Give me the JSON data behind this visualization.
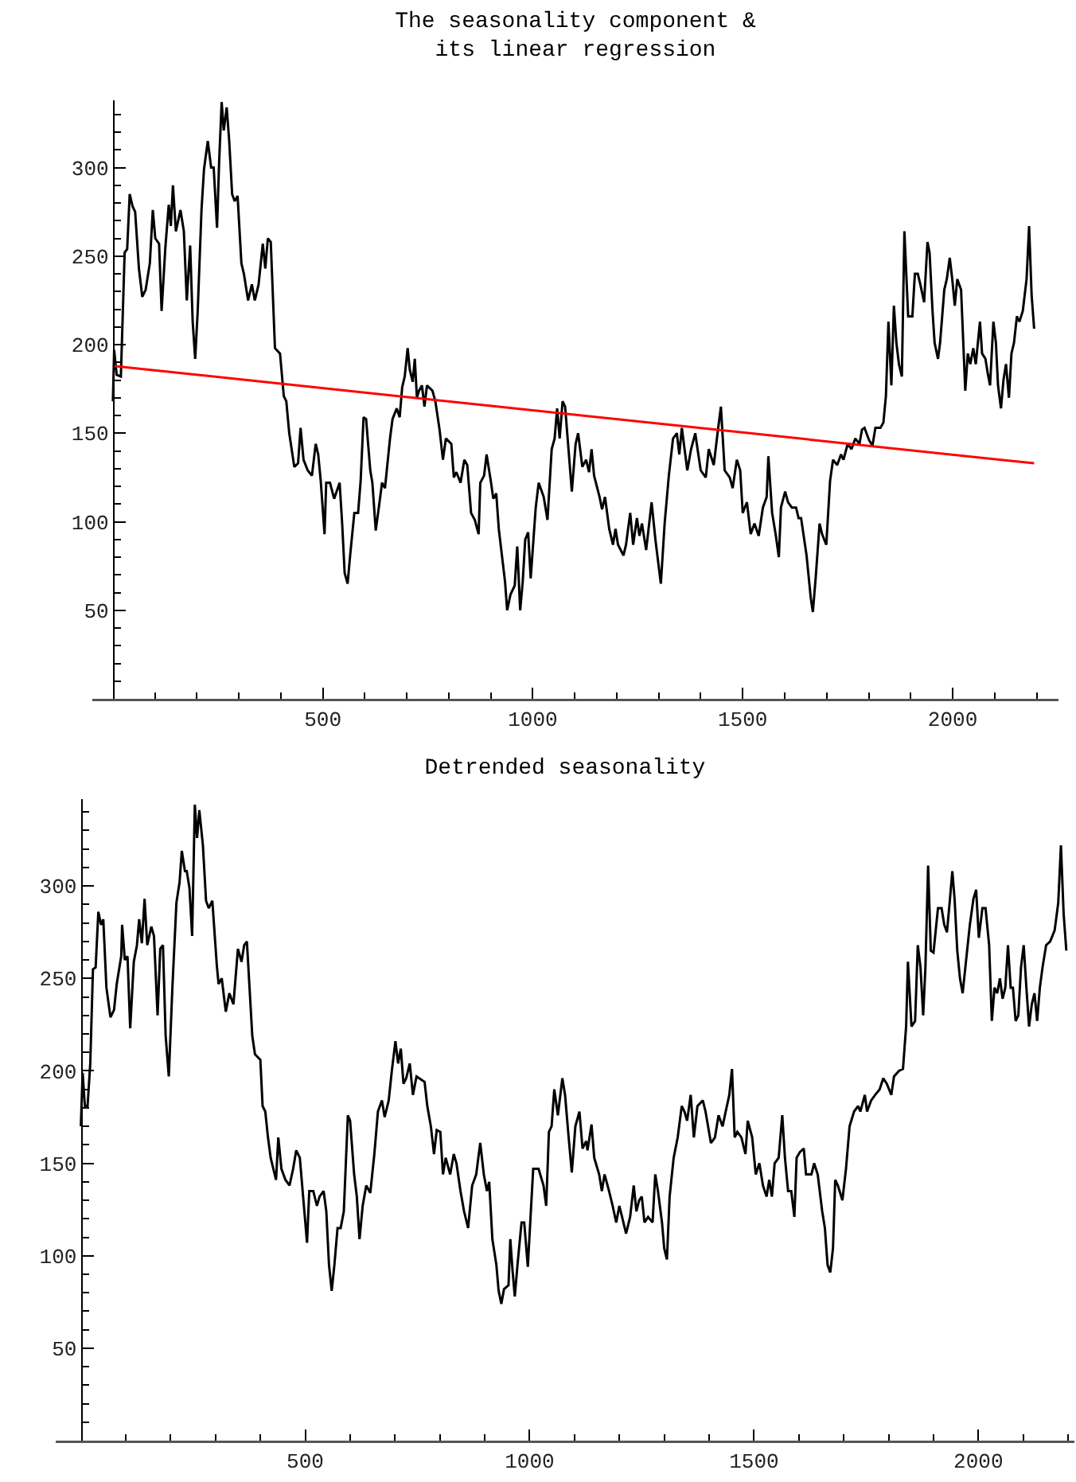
{
  "chart_data": [
    {
      "type": "line",
      "title": "The seasonality component &\nits linear regression",
      "xlim": [
        -49,
        2252
      ],
      "ylim": [
        0,
        338
      ],
      "xticks": [
        {
          "value": 100,
          "label": null
        },
        {
          "value": 200,
          "label": null
        },
        {
          "value": 300,
          "label": null
        },
        {
          "value": 400,
          "label": null
        },
        500,
        {
          "value": 600,
          "label": null
        },
        {
          "value": 700,
          "label": null
        },
        {
          "value": 800,
          "label": null
        },
        {
          "value": 900,
          "label": null
        },
        1000,
        {
          "value": 1100,
          "label": null
        },
        {
          "value": 1200,
          "label": null
        },
        {
          "value": 1300,
          "label": null
        },
        {
          "value": 1400,
          "label": null
        },
        1500,
        {
          "value": 1600,
          "label": null
        },
        {
          "value": 1700,
          "label": null
        },
        {
          "value": 1800,
          "label": null
        },
        {
          "value": 1900,
          "label": null
        },
        2000,
        {
          "value": 2100,
          "label": null
        },
        {
          "value": 2200,
          "label": null
        }
      ],
      "yticks": [
        {
          "value": 10,
          "label": null
        },
        {
          "value": 20,
          "label": null
        },
        {
          "value": 30,
          "label": null
        },
        {
          "value": 40,
          "label": null
        },
        50,
        {
          "value": 60,
          "label": null
        },
        {
          "value": 70,
          "label": null
        },
        {
          "value": 80,
          "label": null
        },
        {
          "value": 90,
          "label": null
        },
        100,
        {
          "value": 110,
          "label": null
        },
        {
          "value": 120,
          "label": null
        },
        {
          "value": 130,
          "label": null
        },
        {
          "value": 140,
          "label": null
        },
        150,
        {
          "value": 160,
          "label": null
        },
        {
          "value": 170,
          "label": null
        },
        {
          "value": 180,
          "label": null
        },
        {
          "value": 190,
          "label": null
        },
        200,
        {
          "value": 210,
          "label": null
        },
        {
          "value": 220,
          "label": null
        },
        {
          "value": 230,
          "label": null
        },
        {
          "value": 240,
          "label": null
        },
        250,
        {
          "value": 260,
          "label": null
        },
        {
          "value": 270,
          "label": null
        },
        {
          "value": 280,
          "label": null
        },
        {
          "value": 290,
          "label": null
        },
        300,
        {
          "value": 310,
          "label": null
        },
        {
          "value": 320,
          "label": null
        },
        {
          "value": 330,
          "label": null
        }
      ],
      "series": [
        {
          "color": "#000000",
          "x": [
            0,
            3,
            9,
            19,
            28,
            34,
            40,
            47,
            53,
            62,
            70,
            78,
            88,
            95,
            101,
            110,
            116,
            125,
            133,
            138,
            143,
            150,
            161,
            169,
            176,
            184,
            190,
            196,
            202,
            211,
            217,
            226,
            234,
            240,
            248,
            253,
            259,
            264,
            271,
            277,
            284,
            290,
            297,
            306,
            312,
            322,
            331,
            338,
            347,
            357,
            363,
            369,
            376,
            386,
            398,
            407,
            413,
            420,
            432,
            441,
            447,
            454,
            464,
            474,
            483,
            489,
            495,
            504,
            508,
            517,
            527,
            540,
            546,
            552,
            559,
            565,
            575,
            584,
            590,
            597,
            603,
            613,
            618,
            626,
            635,
            641,
            648,
            660,
            666,
            676,
            683,
            689,
            695,
            702,
            707,
            714,
            719,
            724,
            729,
            736,
            742,
            748,
            761,
            768,
            778,
            786,
            793,
            806,
            812,
            818,
            828,
            837,
            844,
            853,
            862,
            871,
            875,
            884,
            890,
            900,
            906,
            913,
            919,
            925,
            934,
            939,
            947,
            957,
            963,
            970,
            976,
            982,
            989,
            995,
            1007,
            1014,
            1026,
            1035,
            1045,
            1052,
            1058,
            1064,
            1071,
            1077,
            1083,
            1093,
            1102,
            1108,
            1118,
            1127,
            1134,
            1140,
            1146,
            1159,
            1165,
            1172,
            1182,
            1191,
            1197,
            1203,
            1216,
            1222,
            1232,
            1239,
            1248,
            1254,
            1260,
            1270,
            1283,
            1292,
            1305,
            1314,
            1324,
            1334,
            1343,
            1349,
            1355,
            1362,
            1368,
            1377,
            1387,
            1393,
            1400,
            1412,
            1419,
            1431,
            1440,
            1448,
            1457,
            1469,
            1476,
            1486,
            1494,
            1500,
            1510,
            1519,
            1528,
            1538,
            1548,
            1557,
            1561,
            1570,
            1579,
            1586,
            1591,
            1601,
            1608,
            1617,
            1627,
            1633,
            1639,
            1652,
            1662,
            1667,
            1674,
            1683,
            1689,
            1699,
            1708,
            1715,
            1725,
            1734,
            1740,
            1750,
            1759,
            1768,
            1778,
            1784,
            1790,
            1801,
            1809,
            1816,
            1828,
            1835,
            1841,
            1847,
            1854,
            1860,
            1866,
            1872,
            1879,
            1885,
            1894,
            1904,
            1910,
            1917,
            1923,
            1932,
            1940,
            1945,
            1952,
            1957,
            1965,
            1970,
            1980,
            1986,
            1993,
            1999,
            2005,
            2011,
            2020,
            2030,
            2036,
            2042,
            2049,
            2055,
            2065,
            2070,
            2078,
            2084,
            2089,
            2097,
            2103,
            2108,
            2115,
            2121,
            2127,
            2134,
            2140,
            2146,
            2153,
            2159,
            2167,
            2176,
            2182,
            2188,
            2194
          ],
          "values": [
            168,
            197,
            183,
            182,
            252,
            254,
            285,
            278,
            275,
            243,
            227,
            231,
            246,
            276,
            260,
            257,
            219,
            255,
            279,
            267,
            290,
            264,
            276,
            264,
            225,
            256,
            213,
            192,
            219,
            276,
            299,
            315,
            300,
            300,
            266,
            303,
            337,
            321,
            334,
            315,
            285,
            281,
            284,
            246,
            240,
            225,
            234,
            225,
            234,
            257,
            243,
            260,
            258,
            198,
            195,
            171,
            168,
            150,
            131,
            133,
            153,
            135,
            129,
            126,
            144,
            138,
            123,
            93,
            122,
            122,
            113,
            122,
            99,
            71,
            65,
            81,
            105,
            105,
            123,
            159,
            158,
            129,
            122,
            95,
            111,
            122,
            119,
            147,
            158,
            164,
            159,
            176,
            182,
            198,
            186,
            179,
            192,
            170,
            174,
            177,
            165,
            177,
            174,
            168,
            152,
            135,
            147,
            144,
            125,
            128,
            122,
            135,
            132,
            105,
            101,
            93,
            122,
            126,
            138,
            123,
            113,
            116,
            96,
            84,
            66,
            50,
            59,
            64,
            86,
            50,
            66,
            90,
            94,
            68,
            108,
            122,
            114,
            101,
            141,
            147,
            164,
            147,
            168,
            165,
            147,
            117,
            144,
            150,
            131,
            135,
            128,
            141,
            126,
            114,
            107,
            114,
            96,
            87,
            96,
            87,
            81,
            87,
            105,
            87,
            102,
            92,
            99,
            84,
            111,
            90,
            65,
            99,
            126,
            147,
            150,
            138,
            153,
            140,
            129,
            141,
            150,
            140,
            129,
            125,
            141,
            132,
            150,
            165,
            129,
            125,
            119,
            135,
            129,
            105,
            111,
            93,
            99,
            92,
            108,
            114,
            137,
            105,
            92,
            80,
            108,
            117,
            111,
            108,
            108,
            102,
            102,
            81,
            57,
            49,
            69,
            99,
            93,
            87,
            123,
            135,
            132,
            138,
            135,
            144,
            141,
            147,
            144,
            152,
            153,
            146,
            143,
            153,
            153,
            156,
            171,
            213,
            177,
            222,
            201,
            189,
            182,
            264,
            216,
            216,
            240,
            240,
            234,
            224,
            258,
            252,
            219,
            201,
            192,
            201,
            231,
            237,
            249,
            237,
            222,
            237,
            231,
            174,
            195,
            189,
            198,
            189,
            213,
            195,
            192,
            183,
            177,
            213,
            201,
            177,
            164,
            180,
            189,
            170,
            195,
            201,
            216,
            213,
            219,
            237,
            267,
            228,
            209
          ]
        },
        {
          "type": "line",
          "color": "#ff0000",
          "x": [
            0,
            2194
          ],
          "values": [
            188,
            133
          ]
        }
      ]
    },
    {
      "type": "line",
      "title": "Detrended seasonality",
      "xlim": [
        -56,
        2214
      ],
      "ylim": [
        0,
        347
      ],
      "xticks": [
        {
          "value": 100,
          "label": null
        },
        {
          "value": 200,
          "label": null
        },
        {
          "value": 300,
          "label": null
        },
        {
          "value": 400,
          "label": null
        },
        500,
        {
          "value": 600,
          "label": null
        },
        {
          "value": 700,
          "label": null
        },
        {
          "value": 800,
          "label": null
        },
        {
          "value": 900,
          "label": null
        },
        1000,
        {
          "value": 1100,
          "label": null
        },
        {
          "value": 1200,
          "label": null
        },
        {
          "value": 1300,
          "label": null
        },
        {
          "value": 1400,
          "label": null
        },
        1500,
        {
          "value": 1600,
          "label": null
        },
        {
          "value": 1700,
          "label": null
        },
        {
          "value": 1800,
          "label": null
        },
        {
          "value": 1900,
          "label": null
        },
        2000,
        {
          "value": 2100,
          "label": null
        },
        {
          "value": 2200,
          "label": null
        }
      ],
      "yticks": [
        {
          "value": 10,
          "label": null
        },
        {
          "value": 20,
          "label": null
        },
        {
          "value": 30,
          "label": null
        },
        {
          "value": 40,
          "label": null
        },
        50,
        {
          "value": 60,
          "label": null
        },
        {
          "value": 70,
          "label": null
        },
        {
          "value": 80,
          "label": null
        },
        {
          "value": 90,
          "label": null
        },
        100,
        {
          "value": 110,
          "label": null
        },
        {
          "value": 120,
          "label": null
        },
        {
          "value": 130,
          "label": null
        },
        {
          "value": 140,
          "label": null
        },
        150,
        {
          "value": 160,
          "label": null
        },
        {
          "value": 170,
          "label": null
        },
        {
          "value": 180,
          "label": null
        },
        {
          "value": 190,
          "label": null
        },
        200,
        {
          "value": 210,
          "label": null
        },
        {
          "value": 220,
          "label": null
        },
        {
          "value": 230,
          "label": null
        },
        {
          "value": 240,
          "label": null
        },
        250,
        {
          "value": 260,
          "label": null
        },
        {
          "value": 270,
          "label": null
        },
        {
          "value": 280,
          "label": null
        },
        {
          "value": 290,
          "label": null
        },
        300,
        {
          "value": 310,
          "label": null
        },
        {
          "value": 320,
          "label": null
        },
        {
          "value": 330,
          "label": null
        },
        {
          "value": 340,
          "label": null
        }
      ],
      "series": [
        {
          "color": "#000000",
          "x": [
            0,
            4,
            9,
            15,
            21,
            27,
            33,
            39,
            45,
            50,
            57,
            66,
            74,
            80,
            90,
            92,
            98,
            104,
            110,
            118,
            125,
            130,
            136,
            142,
            148,
            157,
            163,
            171,
            177,
            183,
            189,
            196,
            204,
            213,
            220,
            225,
            232,
            236,
            242,
            248,
            254,
            259,
            264,
            272,
            279,
            285,
            293,
            303,
            307,
            314,
            323,
            331,
            340,
            350,
            358,
            364,
            370,
            382,
            388,
            400,
            405,
            411,
            417,
            423,
            435,
            440,
            447,
            456,
            465,
            473,
            480,
            488,
            496,
            504,
            509,
            518,
            526,
            532,
            541,
            547,
            553,
            559,
            565,
            572,
            579,
            586,
            595,
            600,
            609,
            615,
            621,
            628,
            636,
            645,
            654,
            662,
            671,
            677,
            686,
            693,
            701,
            707,
            713,
            719,
            725,
            733,
            740,
            748,
            754,
            766,
            772,
            780,
            787,
            793,
            801,
            807,
            813,
            823,
            831,
            837,
            846,
            854,
            863,
            872,
            881,
            890,
            898,
            905,
            910,
            917,
            926,
            931,
            937,
            943,
            953,
            957,
            962,
            967,
            973,
            982,
            988,
            996,
            1008,
            1020,
            1031,
            1037,
            1043,
            1049,
            1055,
            1063,
            1073,
            1079,
            1087,
            1094,
            1102,
            1111,
            1118,
            1126,
            1129,
            1138,
            1144,
            1155,
            1161,
            1167,
            1177,
            1185,
            1193,
            1200,
            1206,
            1215,
            1224,
            1232,
            1238,
            1244,
            1250,
            1256,
            1264,
            1274,
            1280,
            1286,
            1295,
            1300,
            1306,
            1312,
            1321,
            1330,
            1339,
            1345,
            1351,
            1359,
            1366,
            1374,
            1386,
            1392,
            1404,
            1413,
            1421,
            1430,
            1437,
            1445,
            1451,
            1457,
            1463,
            1472,
            1481,
            1486,
            1496,
            1504,
            1512,
            1520,
            1528,
            1534,
            1540,
            1546,
            1555,
            1563,
            1569,
            1576,
            1583,
            1590,
            1595,
            1602,
            1611,
            1616,
            1628,
            1634,
            1642,
            1652,
            1658,
            1664,
            1670,
            1676,
            1681,
            1687,
            1697,
            1705,
            1713,
            1723,
            1732,
            1737,
            1747,
            1752,
            1761,
            1770,
            1780,
            1788,
            1796,
            1806,
            1812,
            1823,
            1832,
            1839,
            1843,
            1851,
            1859,
            1865,
            1871,
            1877,
            1882,
            1888,
            1894,
            1900,
            1910,
            1918,
            1924,
            1930,
            1936,
            1942,
            1947,
            1953,
            1959,
            1965,
            1971,
            1981,
            1989,
            1995,
            2001,
            2009,
            2016,
            2024,
            2030,
            2036,
            2042,
            2048,
            2054,
            2060,
            2066,
            2072,
            2077,
            2083,
            2089,
            2095,
            2101,
            2107,
            2113,
            2119,
            2125,
            2131,
            2137,
            2143,
            2151,
            2160,
            2170,
            2178,
            2184,
            2190,
            2196
          ],
          "values": [
            170,
            199,
            181,
            181,
            204,
            255,
            256,
            286,
            279,
            282,
            245,
            229,
            233,
            247,
            262,
            279,
            260,
            262,
            223,
            259,
            268,
            282,
            269,
            293,
            268,
            278,
            273,
            230,
            266,
            268,
            219,
            197,
            245,
            291,
            302,
            319,
            308,
            308,
            299,
            273,
            344,
            326,
            341,
            322,
            292,
            288,
            292,
            257,
            247,
            250,
            232,
            242,
            236,
            266,
            259,
            268,
            270,
            219,
            209,
            206,
            181,
            178,
            164,
            153,
            141,
            164,
            147,
            141,
            138,
            147,
            157,
            153,
            130,
            107,
            135,
            135,
            127,
            132,
            135,
            124,
            95,
            81,
            95,
            115,
            115,
            124,
            176,
            173,
            144,
            132,
            109,
            127,
            138,
            134,
            155,
            178,
            184,
            175,
            184,
            200,
            216,
            204,
            212,
            193,
            196,
            204,
            187,
            197,
            196,
            194,
            181,
            170,
            155,
            168,
            167,
            144,
            153,
            144,
            155,
            150,
            135,
            124,
            115,
            138,
            144,
            161,
            144,
            135,
            140,
            109,
            95,
            81,
            74,
            82,
            84,
            109,
            92,
            78,
            95,
            118,
            118,
            94,
            147,
            147,
            138,
            127,
            167,
            170,
            190,
            176,
            196,
            187,
            164,
            145,
            170,
            178,
            158,
            162,
            157,
            171,
            153,
            144,
            135,
            144,
            135,
            127,
            118,
            127,
            121,
            112,
            121,
            138,
            124,
            130,
            132,
            118,
            121,
            118,
            144,
            135,
            118,
            104,
            98,
            132,
            153,
            164,
            181,
            178,
            173,
            187,
            164,
            181,
            184,
            178,
            161,
            164,
            176,
            170,
            178,
            187,
            201,
            164,
            167,
            164,
            155,
            173,
            164,
            144,
            150,
            138,
            132,
            141,
            132,
            150,
            153,
            176,
            153,
            135,
            135,
            121,
            153,
            156,
            158,
            144,
            144,
            150,
            144,
            124,
            115,
            95,
            91,
            104,
            141,
            138,
            130,
            147,
            170,
            178,
            181,
            178,
            187,
            178,
            184,
            187,
            190,
            196,
            193,
            187,
            197,
            200,
            201,
            224,
            259,
            224,
            227,
            268,
            256,
            230,
            256,
            311,
            265,
            264,
            288,
            288,
            279,
            275,
            291,
            308,
            293,
            265,
            250,
            242,
            256,
            279,
            293,
            298,
            272,
            288,
            288,
            268,
            227,
            245,
            242,
            250,
            239,
            245,
            268,
            245,
            245,
            227,
            230,
            256,
            268,
            245,
            224,
            236,
            242,
            227,
            245,
            256,
            268,
            270,
            276,
            291,
            322,
            285,
            265
          ]
        }
      ]
    }
  ]
}
